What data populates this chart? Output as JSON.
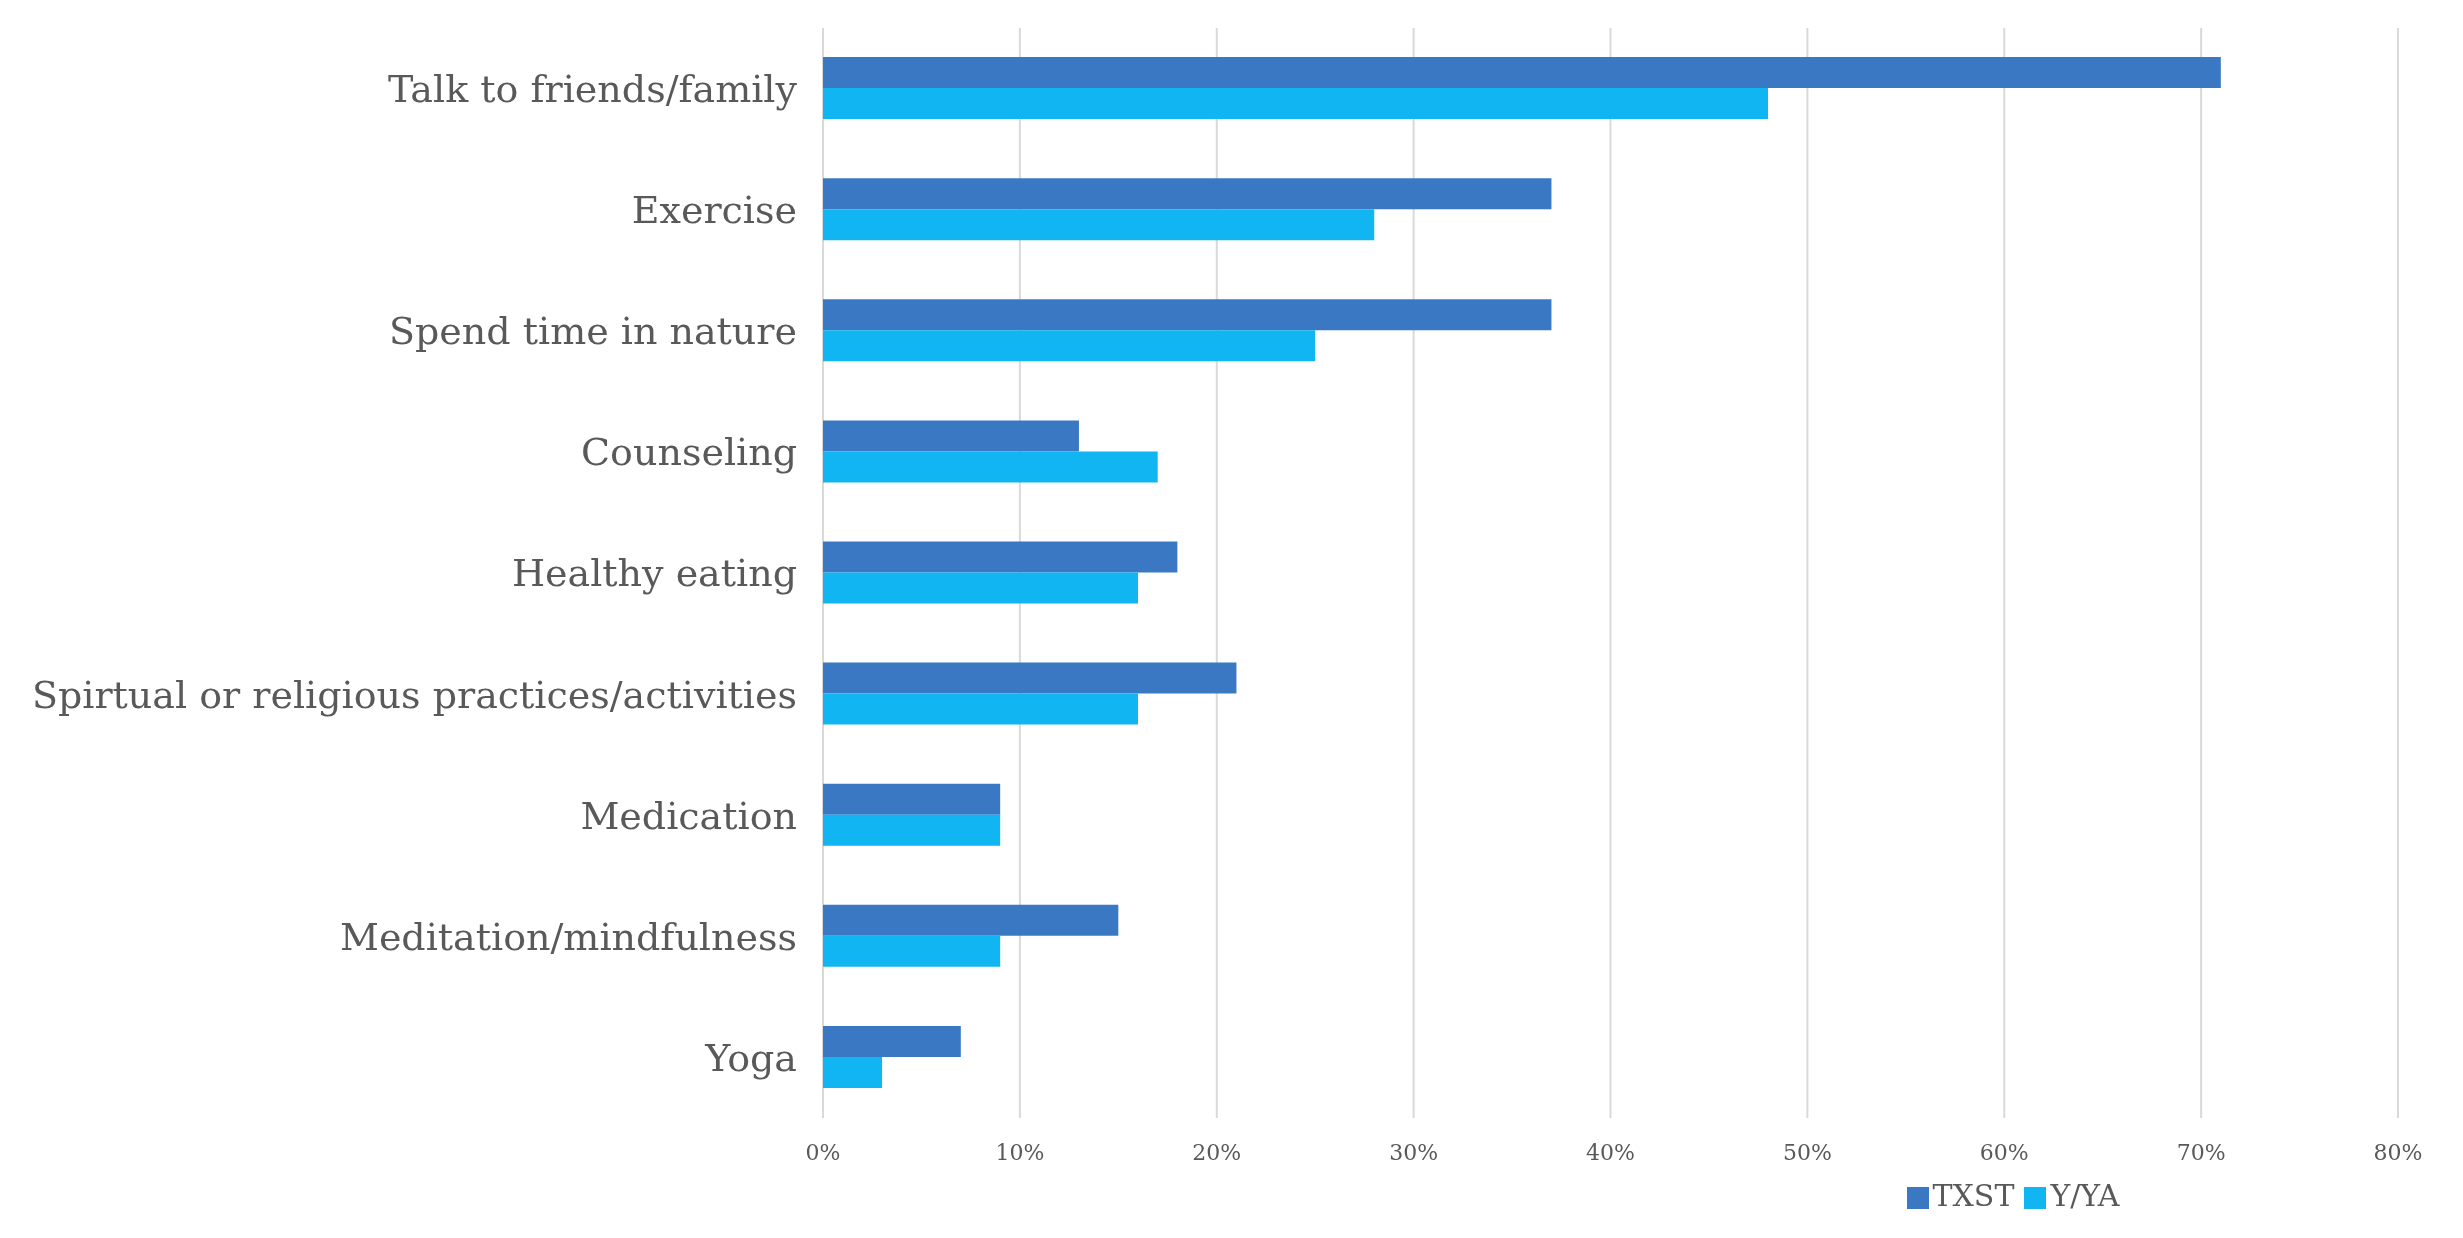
{
  "chart_data": {
    "type": "bar",
    "orientation": "horizontal",
    "categories": [
      "Talk to friends/family",
      "Exercise",
      "Spend time in nature",
      "Counseling",
      "Healthy eating",
      "Spirtual or religious practices/activities",
      "Medication",
      "Meditation/mindfulness",
      "Yoga"
    ],
    "series": [
      {
        "name": "TXST",
        "color": "#3b78c4",
        "values": [
          71,
          37,
          37,
          13,
          18,
          21,
          9,
          15,
          7
        ]
      },
      {
        "name": "Y/YA",
        "color": "#10b5f2",
        "values": [
          48,
          28,
          25,
          17,
          16,
          16,
          9,
          9,
          3
        ]
      }
    ],
    "xlim": [
      0,
      80
    ],
    "xticks": [
      {
        "value": 0,
        "label": "0%"
      },
      {
        "value": 10,
        "label": "10%"
      },
      {
        "value": 20,
        "label": "20%"
      },
      {
        "value": 30,
        "label": "30%"
      },
      {
        "value": 40,
        "label": "40%"
      },
      {
        "value": 50,
        "label": "50%"
      },
      {
        "value": 60,
        "label": "60%"
      },
      {
        "value": 70,
        "label": "70%"
      },
      {
        "value": 80,
        "label": "80%"
      }
    ],
    "grid": "x",
    "legend": "bottom"
  }
}
